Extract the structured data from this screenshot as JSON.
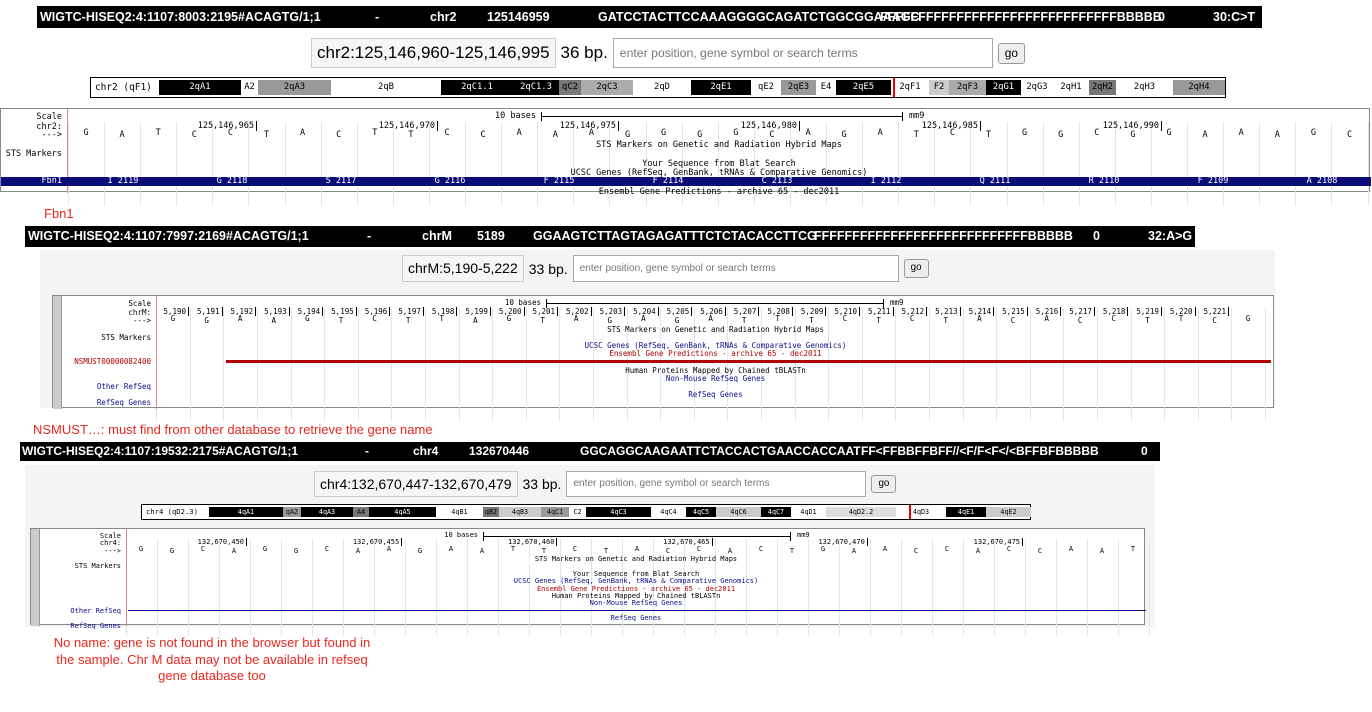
{
  "panels": [
    {
      "read": [
        "WIGTC-HISEQ2:4:1107:8003:2195#ACAGTG/1;1",
        "-",
        "chr2",
        "125146959",
        "GATCCTACTTCCAAAGGGGCAGATCTGGCGGAAAGC",
        "FFFFFFFFFFFFFFFFFFFFFFFFFFFFFFFBBBBB",
        "0",
        "30:C>T"
      ],
      "browser": {
        "position": "chr2:125,146,960-125,146,995",
        "size": "36 bp.",
        "placeholder": "enter position, gene symbol or search terms",
        "go": "go",
        "ideogram": {
          "label": "chr2 (qF1)",
          "bands": [
            {
              "label": "2qA1",
              "color": "#000000"
            },
            {
              "label": "A2",
              "color": "#ffffff"
            },
            {
              "label": "2qA3",
              "color": "#999999"
            },
            {
              "label": "2qB",
              "color": "#ffffff"
            },
            {
              "label": "2qC1.1",
              "color": "#000000"
            },
            {
              "label": "2qC1.3",
              "color": "#000000"
            },
            {
              "label": "qC2",
              "color": "#777777"
            },
            {
              "label": "2qC3",
              "color": "#aaaaaa"
            },
            {
              "label": "2qD",
              "color": "#ffffff"
            },
            {
              "label": "2qE1",
              "color": "#000000"
            },
            {
              "label": "qE2",
              "color": "#ffffff"
            },
            {
              "label": "2qE3",
              "color": "#999999"
            },
            {
              "label": "E4",
              "color": "#ffffff"
            },
            {
              "label": "2qE5",
              "color": "#000000"
            },
            {
              "label": "2qF1",
              "color": "#ffffff"
            },
            {
              "label": "F2",
              "color": "#cccccc"
            },
            {
              "label": "2qF3",
              "color": "#aaaaaa"
            },
            {
              "label": "2qG1",
              "color": "#000000"
            },
            {
              "label": "2qG3",
              "color": "#ffffff"
            },
            {
              "label": "2qH1",
              "color": "#ffffff"
            },
            {
              "label": "2qH2",
              "color": "#777777"
            },
            {
              "label": "2qH3",
              "color": "#ffffff"
            },
            {
              "label": "2qH4",
              "color": "#999999"
            }
          ]
        },
        "scale": "Scale",
        "chrom": "chr2:",
        "strand": "--->",
        "scale_bar": "10 bases",
        "assembly": "mm9",
        "coords": [
          "125,146,965",
          "125,146,970",
          "125,146,975",
          "125,146,980",
          "125,146,985",
          "125,146,990"
        ],
        "bases": "GATCCTACTTCCAAAGGGGCAGATCTGGCGGAAAGC",
        "rows": [
          {
            "text": "STS Markers on Genetic and Radiation Hybrid Maps",
            "color": "#000000"
          },
          {
            "label": "STS Markers",
            "color": "#000000"
          },
          {
            "text": "Your Sequence from Blat Search",
            "color": "#000000"
          },
          {
            "text": "UCSC Genes (RefSeq, GenBank, tRNAs & Comparative Genomics)",
            "color": "#000000"
          },
          {
            "label": "Fbn1",
            "color": "#0c0c78",
            "exons": [
              "I 2119",
              "G 2118",
              "S 2117",
              "G 2116",
              "F 2115",
              "F 2114",
              "C 2113",
              "I 2112",
              "Q 2111",
              "R 2110",
              "F 2109",
              "A 2108"
            ]
          },
          {
            "text": "Ensembl Gene Predictions - archive 65 - dec2011",
            "color": "#000000"
          }
        ]
      }
    },
    {
      "read": [
        "WIGTC-HISEQ2:4:1107:7997:2169#ACAGTG/1;1",
        "-",
        "chrM",
        "5189",
        "GGAAGTCTTAGTAGAGATTTCTCTACACCTTCG",
        "FFFFFFFFFFFFFFFFFFFFFFFFFFFFBBBBB",
        "0",
        "32:A>G"
      ],
      "browser": {
        "position": "chrM:5,190-5,222",
        "size": "33 bp.",
        "placeholder": "enter position, gene symbol or search terms",
        "go": "go",
        "scale": "Scale",
        "chrom": "chrM:",
        "strand": "--->",
        "scale_bar": "10 bases",
        "assembly": "mm9",
        "coords": [
          "5,190",
          "5,191",
          "5,192",
          "5,193",
          "5,194",
          "5,195",
          "5,196",
          "5,197",
          "5,198",
          "5,199",
          "5,200",
          "5,201",
          "5,202",
          "5,203",
          "5,204",
          "5,205",
          "5,206",
          "5,207",
          "5,208",
          "5,209",
          "5,210",
          "5,211",
          "5,212",
          "5,213",
          "5,214",
          "5,215",
          "5,216",
          "5,217",
          "5,218",
          "5,219",
          "5,220",
          "5,221"
        ],
        "bases": "GGAAGTCTTAGTAGAGATTTCTCTACACCTTCG",
        "rows": [
          {
            "text": "STS Markers on Genetic and Radiation Hybrid Maps",
            "color": "#000000"
          },
          {
            "label": "STS Markers",
            "color": "#000000"
          },
          {
            "text": "UCSC Genes (RefSeq, GenBank, tRNAs & Comparative Genomics)",
            "color": "#0c0c8c"
          },
          {
            "text": "Ensembl Gene Predictions - archive 65 - dec2011",
            "color": "#b00000"
          },
          {
            "label": "NSMUST00000082400",
            "color": "#b00000",
            "line": true
          },
          {
            "text": "Human Proteins Mapped by Chained tBLASTn",
            "color": "#000000"
          },
          {
            "text": "Non-Mouse RefSeq Genes",
            "color": "#0c0c8c"
          },
          {
            "label": "Other RefSeq",
            "color": "#0c0c8c"
          },
          {
            "text": "RefSeq Genes",
            "color": "#0c0c8c"
          },
          {
            "label": "RefSeq Genes",
            "color": "#0c0c8c"
          }
        ]
      }
    },
    {
      "read": [
        "WIGTC-HISEQ2:4:1107:19532:2175#ACAGTG/1;1",
        "-",
        "chr4",
        "132670446",
        "GGCAGGCAAGAATTCTACCACTGAACCACCAAT",
        "FF<FFBBFFBFF//<F/F<F</<BFFBFBBBBB",
        "0"
      ],
      "browser": {
        "position": "chr4:132,670,447-132,670,479",
        "size": "33 bp.",
        "placeholder": "enter position, gene symbol or search terms",
        "go": "go",
        "ideogram": {
          "label": "chr4 (qD2.3)",
          "bands": [
            {
              "label": "4qA1",
              "color": "#000000"
            },
            {
              "label": "qA2",
              "color": "#999999"
            },
            {
              "label": "4qA3",
              "color": "#000000"
            },
            {
              "label": "A4",
              "color": "#777777"
            },
            {
              "label": "4qA5",
              "color": "#000000"
            },
            {
              "label": "4qB1",
              "color": "#ffffff"
            },
            {
              "label": "qB2",
              "color": "#777777"
            },
            {
              "label": "4qB3",
              "color": "#cccccc"
            },
            {
              "label": "4qC1",
              "color": "#999999"
            },
            {
              "label": "C2",
              "color": "#ffffff"
            },
            {
              "label": "4qC3",
              "color": "#000000"
            },
            {
              "label": "4qC4",
              "color": "#ffffff"
            },
            {
              "label": "4qC5",
              "color": "#000000"
            },
            {
              "label": "4qC6",
              "color": "#cccccc"
            },
            {
              "label": "4qC7",
              "color": "#000000"
            },
            {
              "label": "4qD1",
              "color": "#ffffff"
            },
            {
              "label": "4qD2.2",
              "color": "#dddddd"
            },
            {
              "label": "4qD3",
              "color": "#ffffff"
            },
            {
              "label": "4qE1",
              "color": "#000000"
            },
            {
              "label": "4qE2",
              "color": "#cccccc"
            }
          ]
        },
        "scale": "Scale",
        "chrom": "chr4:",
        "strand": "--->",
        "scale_bar": "10 bases",
        "assembly": "mm9",
        "coords": [
          "132,670,450",
          "132,670,455",
          "132,670,460",
          "132,670,465",
          "132,670,470",
          "132,670,475"
        ],
        "bases": "GGCAGGCAAGAATTCTACCACTGAACCACCAAT",
        "rows": [
          {
            "text": "STS Markers on Genetic and Radiation Hybrid Maps",
            "color": "#000000"
          },
          {
            "label": "STS Markers",
            "color": "#000000"
          },
          {
            "text": "Your Sequence from Blat Search",
            "color": "#000000"
          },
          {
            "text": "UCSC Genes (RefSeq, GenBank, tRNAs & Comparative Genomics)",
            "color": "#0c0c8c"
          },
          {
            "text": "Ensembl Gene Predictions - archive 65 - dec2011",
            "color": "#b00000"
          },
          {
            "text": "Human Proteins Mapped by Chained tBLASTn",
            "color": "#000000"
          },
          {
            "text": "Non-Mouse RefSeq Genes",
            "color": "#0c0c8c"
          },
          {
            "label": "Other RefSeq",
            "color": "#0c0c8c",
            "line": true
          },
          {
            "text": "RefSeq Genes",
            "color": "#0c0c8c"
          },
          {
            "label": "RefSeq Genes",
            "color": "#0c0c8c"
          }
        ]
      }
    }
  ],
  "notes": [
    "Fbn1",
    "NSMUST…: must find from other database to retrieve the gene name",
    "No name: gene is not found in the browser but found in the sample. Chr M data may not be available in refseq gene database too"
  ],
  "note_color": "#e8281e"
}
